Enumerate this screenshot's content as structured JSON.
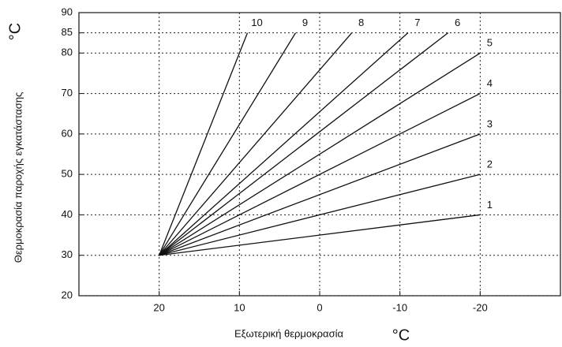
{
  "chart_data": {
    "type": "line",
    "y_label": "Θερμοκρασία παροχής εγκατάστασης",
    "x_label": "Εξωτερική θερμοκρασία",
    "y_unit": "°C",
    "x_unit": "°C",
    "xlim": [
      30,
      -30
    ],
    "xticks": [
      20,
      10,
      0,
      -10,
      -20
    ],
    "ylim": [
      20,
      90
    ],
    "yticks": [
      20,
      30,
      40,
      50,
      60,
      70,
      80,
      85,
      90
    ],
    "grid": true,
    "color": "#111111",
    "series": [
      {
        "name": "1",
        "x": [
          20,
          -20
        ],
        "values": [
          30,
          40
        ]
      },
      {
        "name": "2",
        "x": [
          20,
          -20
        ],
        "values": [
          30,
          50
        ]
      },
      {
        "name": "3",
        "x": [
          20,
          -20
        ],
        "values": [
          30,
          60
        ]
      },
      {
        "name": "4",
        "x": [
          20,
          -20
        ],
        "values": [
          30,
          70
        ]
      },
      {
        "name": "5",
        "x": [
          20,
          -20
        ],
        "values": [
          30,
          80
        ]
      },
      {
        "name": "6",
        "x": [
          20,
          -16
        ],
        "values": [
          30,
          85
        ]
      },
      {
        "name": "7",
        "x": [
          20,
          -11
        ],
        "values": [
          30,
          85
        ]
      },
      {
        "name": "8",
        "x": [
          20,
          -4
        ],
        "values": [
          30,
          85
        ]
      },
      {
        "name": "9",
        "x": [
          20,
          3
        ],
        "values": [
          30,
          85
        ]
      },
      {
        "name": "10",
        "x": [
          20,
          9
        ],
        "values": [
          30,
          85
        ]
      }
    ]
  }
}
